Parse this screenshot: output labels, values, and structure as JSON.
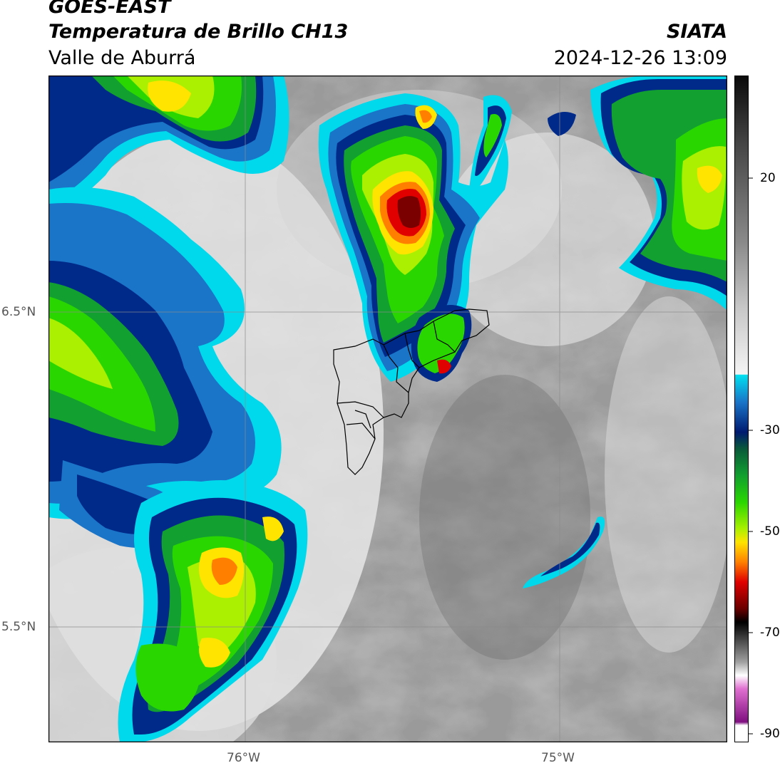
{
  "header": {
    "satellite": "GOES-EAST",
    "product": "Temperatura de Brillo CH13",
    "region": "Valle de Aburrá",
    "agency": "SIATA",
    "datetime": "2024-12-26 13:09"
  },
  "map": {
    "lat_labels": [
      "6.5°N",
      "5.5°N"
    ],
    "lon_labels": [
      "76°W",
      "75°W"
    ]
  },
  "colorbar": {
    "ticks": [
      "20",
      "-30",
      "-50",
      "-70",
      "-90"
    ],
    "colors": {
      "high_cloud_cyan": "#00d8ec",
      "blue": "#1a74c8",
      "navy": "#002a8a",
      "green": "#2ad600",
      "lime": "#aaf000",
      "yellow": "#ffe400",
      "orange": "#ff8000",
      "red": "#e00000",
      "dark_red": "#7a0000",
      "black": "#000000",
      "magenta": "#c040c0"
    }
  }
}
